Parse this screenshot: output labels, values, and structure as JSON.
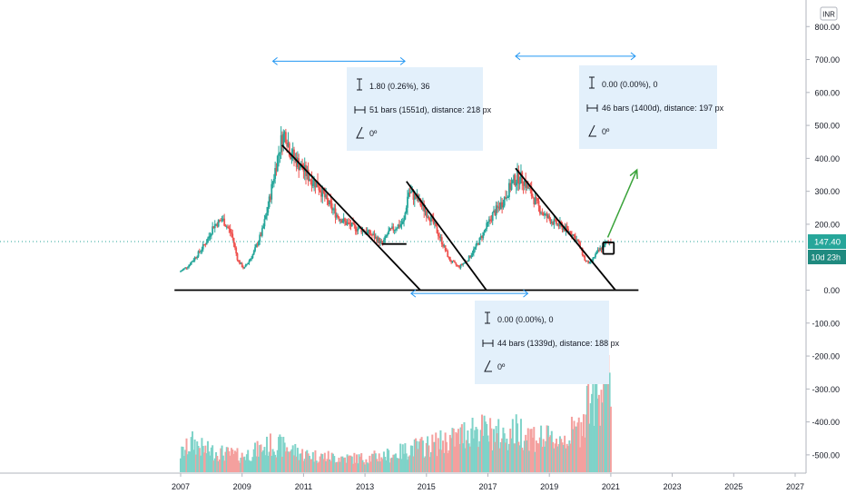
{
  "chart_data": {
    "type": "candlestick",
    "currency": "INR",
    "last_price": {
      "label": "147.40",
      "value": 147.4,
      "color": "#26a69a"
    },
    "countdown": "10d 23h",
    "y_axis": {
      "ticks": [
        {
          "label": "800.00",
          "value": 800
        },
        {
          "label": "700.00",
          "value": 700
        },
        {
          "label": "600.00",
          "value": 600
        },
        {
          "label": "500.00",
          "value": 500
        },
        {
          "label": "400.00",
          "value": 400
        },
        {
          "label": "300.00",
          "value": 300
        },
        {
          "label": "200.00",
          "value": 200
        },
        {
          "label": "0.00",
          "value": 0
        },
        {
          "label": "-100.00",
          "value": -100
        },
        {
          "label": "-200.00",
          "value": -200
        },
        {
          "label": "-300.00",
          "value": -300
        },
        {
          "label": "-400.00",
          "value": -400
        },
        {
          "label": "-500.00",
          "value": -500
        }
      ]
    },
    "x_axis": {
      "ticks": [
        {
          "label": "2007",
          "value": 2007
        },
        {
          "label": "2009",
          "value": 2009
        },
        {
          "label": "2011",
          "value": 2011
        },
        {
          "label": "2013",
          "value": 2013
        },
        {
          "label": "2015",
          "value": 2015
        },
        {
          "label": "2017",
          "value": 2017
        },
        {
          "label": "2019",
          "value": 2019
        },
        {
          "label": "2021",
          "value": 2021
        },
        {
          "label": "2023",
          "value": 2023
        },
        {
          "label": "2025",
          "value": 2025
        },
        {
          "label": "2027",
          "value": 2027
        }
      ]
    },
    "price_path": [
      [
        2007.0,
        55
      ],
      [
        2007.3,
        75
      ],
      [
        2007.6,
        110
      ],
      [
        2007.9,
        150
      ],
      [
        2008.1,
        195
      ],
      [
        2008.4,
        215
      ],
      [
        2008.7,
        170
      ],
      [
        2008.9,
        90
      ],
      [
        2009.1,
        65
      ],
      [
        2009.4,
        110
      ],
      [
        2009.7,
        180
      ],
      [
        2009.9,
        260
      ],
      [
        2010.1,
        360
      ],
      [
        2010.3,
        450
      ],
      [
        2010.45,
        480
      ],
      [
        2010.6,
        420
      ],
      [
        2010.9,
        380
      ],
      [
        2011.2,
        345
      ],
      [
        2011.5,
        320
      ],
      [
        2011.8,
        270
      ],
      [
        2012.1,
        230
      ],
      [
        2012.4,
        205
      ],
      [
        2012.7,
        190
      ],
      [
        2013.0,
        182
      ],
      [
        2013.3,
        165
      ],
      [
        2013.6,
        140
      ],
      [
        2013.8,
        175
      ],
      [
        2014.1,
        195
      ],
      [
        2014.3,
        205
      ],
      [
        2014.45,
        300
      ],
      [
        2014.7,
        280
      ],
      [
        2014.9,
        255
      ],
      [
        2015.2,
        215
      ],
      [
        2015.5,
        155
      ],
      [
        2015.8,
        90
      ],
      [
        2016.1,
        70
      ],
      [
        2016.4,
        95
      ],
      [
        2016.7,
        140
      ],
      [
        2016.9,
        175
      ],
      [
        2017.2,
        230
      ],
      [
        2017.5,
        265
      ],
      [
        2017.8,
        320
      ],
      [
        2018.0,
        345
      ],
      [
        2018.2,
        335
      ],
      [
        2018.4,
        300
      ],
      [
        2018.7,
        250
      ],
      [
        2018.9,
        225
      ],
      [
        2019.2,
        205
      ],
      [
        2019.5,
        190
      ],
      [
        2019.8,
        170
      ],
      [
        2020.0,
        140
      ],
      [
        2020.2,
        90
      ],
      [
        2020.35,
        80
      ],
      [
        2020.6,
        115
      ],
      [
        2020.85,
        140
      ],
      [
        2021.0,
        147.4
      ]
    ],
    "volume_path": [
      [
        2007.0,
        18
      ],
      [
        2007.4,
        30
      ],
      [
        2007.8,
        22
      ],
      [
        2008.2,
        20
      ],
      [
        2008.6,
        18
      ],
      [
        2009.0,
        16
      ],
      [
        2009.5,
        22
      ],
      [
        2010.0,
        28
      ],
      [
        2010.5,
        24
      ],
      [
        2011.0,
        18
      ],
      [
        2011.5,
        16
      ],
      [
        2012.0,
        15
      ],
      [
        2012.5,
        14
      ],
      [
        2013.0,
        14
      ],
      [
        2013.5,
        16
      ],
      [
        2014.0,
        18
      ],
      [
        2014.5,
        24
      ],
      [
        2015.0,
        26
      ],
      [
        2015.5,
        30
      ],
      [
        2016.0,
        34
      ],
      [
        2016.5,
        44
      ],
      [
        2017.0,
        40
      ],
      [
        2017.5,
        36
      ],
      [
        2018.0,
        42
      ],
      [
        2018.5,
        36
      ],
      [
        2019.0,
        32
      ],
      [
        2019.5,
        34
      ],
      [
        2020.0,
        44
      ],
      [
        2020.3,
        80
      ],
      [
        2020.6,
        72
      ],
      [
        2020.8,
        118
      ],
      [
        2021.0,
        60
      ]
    ],
    "trendlines": [
      {
        "from": [
          2006.8,
          0
        ],
        "to": [
          2021.9,
          0
        ],
        "color": "#000000"
      },
      {
        "from": [
          2010.3,
          440
        ],
        "to": [
          2014.8,
          0
        ],
        "color": "#000000"
      },
      {
        "from": [
          2014.35,
          330
        ],
        "to": [
          2016.95,
          0
        ],
        "color": "#000000"
      },
      {
        "from": [
          2017.9,
          370
        ],
        "to": [
          2021.15,
          0
        ],
        "color": "#000000"
      },
      {
        "from": [
          2013.55,
          140
        ],
        "to": [
          2014.35,
          140
        ],
        "color": "#000000"
      },
      {
        "from": [
          2020.75,
          110
        ],
        "to": [
          2021.1,
          110
        ],
        "color": "#000000"
      },
      {
        "from": [
          2020.75,
          110
        ],
        "to": [
          2020.75,
          145
        ],
        "color": "#000000"
      },
      {
        "from": [
          2021.1,
          110
        ],
        "to": [
          2021.1,
          145
        ],
        "color": "#000000"
      },
      {
        "from": [
          2020.75,
          145
        ],
        "to": [
          2021.1,
          145
        ],
        "color": "#000000"
      }
    ],
    "projection_arrow": {
      "from": [
        2020.9,
        160
      ],
      "to": [
        2021.85,
        365
      ],
      "color": "#3aa33a"
    },
    "range_arrows": [
      {
        "from": [
          2010.0,
          695
        ],
        "to": [
          2014.3,
          695
        ]
      },
      {
        "from": [
          2017.9,
          710
        ],
        "to": [
          2021.8,
          710
        ]
      },
      {
        "from": [
          2014.5,
          -10
        ],
        "to": [
          2018.3,
          -10
        ]
      }
    ],
    "measure_labels": [
      {
        "line1": "1.80 (0.26%), 36",
        "line2": "51 bars (1551d), distance: 218 px",
        "line3": "0º"
      },
      {
        "line1": "0.00 (0.00%), 0",
        "line2": "46 bars (1400d), distance: 197 px",
        "line3": "0º"
      },
      {
        "line1": "0.00 (0.00%), 0",
        "line2": "44 bars (1339d), distance: 188 px",
        "line3": "0º"
      }
    ],
    "colors": {
      "up": "#26a69a",
      "down": "#ef5350",
      "vol_up": "#7fd3c9",
      "vol_down": "#f4a09e",
      "measure_bg": "#e3f0fb",
      "measure_arrow": "#2196f3",
      "grid_dot": "#26a69a",
      "axis_text": "#131722",
      "axis_line": "#b2b5be"
    }
  }
}
